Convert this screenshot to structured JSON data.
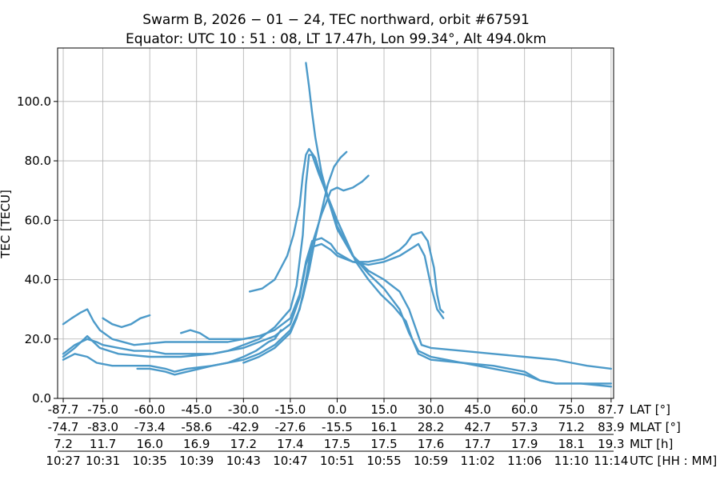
{
  "chart_data": {
    "type": "scatter",
    "title_line1": "Swarm B,  2026 − 01 − 24,  TEC northward,  orbit #67591",
    "title_line2": "Equator:  UTC 10 : 51 : 08,  LT 17.47h,  Lon 99.34°,  Alt 494.0km",
    "ylabel": "TEC [TECU]",
    "ylim": [
      0,
      118
    ],
    "xlim": [
      -89.5,
      88.5
    ],
    "y_ticks": [
      0,
      20,
      40,
      60,
      80,
      100
    ],
    "y_tick_labels": [
      "0.0",
      "20.0",
      "40.0",
      "60.0",
      "80.0",
      "100.0"
    ],
    "x_ticks": [
      -87.7,
      -75.0,
      -60.0,
      -45.0,
      -30.0,
      -15.0,
      0.0,
      15.0,
      30.0,
      45.0,
      60.0,
      75.0,
      87.7
    ],
    "grid": true,
    "color": "#4c9ac9",
    "axis_rows": [
      {
        "label": "LAT [°]",
        "values": [
          "-87.7",
          "-75.0",
          "-60.0",
          "-45.0",
          "-30.0",
          "-15.0",
          "0.0",
          "15.0",
          "30.0",
          "45.0",
          "60.0",
          "75.0",
          "87.7"
        ]
      },
      {
        "label": "MLAT [°]",
        "values": [
          "-74.7",
          "-83.0",
          "-73.4",
          "-58.6",
          "-42.9",
          "-27.6",
          "-15.5",
          "16.1",
          "28.2",
          "42.7",
          "57.3",
          "71.2",
          "83.9"
        ]
      },
      {
        "label": "MLT [h]",
        "values": [
          "7.2",
          "11.7",
          "16.0",
          "16.9",
          "17.2",
          "17.4",
          "17.5",
          "17.5",
          "17.6",
          "17.7",
          "17.9",
          "18.1",
          "19.3"
        ]
      },
      {
        "label": "UTC [HH : MM]",
        "values": [
          "10:27",
          "10:31",
          "10:35",
          "10:39",
          "10:43",
          "10:47",
          "10:51",
          "10:55",
          "10:59",
          "11:02",
          "11:06",
          "11:10",
          "11:14"
        ]
      }
    ],
    "series": [
      {
        "name": "arc-1",
        "points": [
          [
            -87.7,
            14
          ],
          [
            -84,
            17
          ],
          [
            -80,
            21
          ],
          [
            -76,
            17
          ],
          [
            -70,
            15
          ],
          [
            -60,
            14
          ],
          [
            -50,
            14
          ],
          [
            -40,
            15
          ],
          [
            -30,
            17
          ],
          [
            -20,
            21
          ],
          [
            -15,
            25
          ],
          [
            -12,
            34
          ],
          [
            -10,
            45
          ],
          [
            -8,
            51
          ],
          [
            -5,
            52
          ],
          [
            -2,
            50
          ],
          [
            0,
            48
          ],
          [
            5,
            46
          ],
          [
            10,
            46
          ],
          [
            15,
            47
          ],
          [
            20,
            50
          ],
          [
            22,
            52
          ],
          [
            24,
            55
          ],
          [
            27,
            56
          ],
          [
            29,
            53
          ],
          [
            31,
            44
          ],
          [
            32,
            35
          ],
          [
            33,
            30
          ],
          [
            34,
            29
          ]
        ]
      },
      {
        "name": "arc-2",
        "points": [
          [
            -87.7,
            25
          ],
          [
            -85,
            27
          ],
          [
            -82,
            29
          ],
          [
            -80,
            30
          ],
          [
            -78,
            26
          ],
          [
            -76,
            23
          ],
          [
            -72,
            20
          ],
          [
            -65,
            18
          ],
          [
            -55,
            19
          ],
          [
            -45,
            19
          ],
          [
            -35,
            19
          ],
          [
            -30,
            20
          ],
          [
            -25,
            21
          ],
          [
            -20,
            23
          ],
          [
            -15,
            27
          ],
          [
            -12,
            35
          ],
          [
            -10,
            46
          ],
          [
            -8,
            53
          ],
          [
            -5,
            54
          ],
          [
            -2,
            52
          ],
          [
            0,
            49
          ],
          [
            5,
            46
          ],
          [
            10,
            45
          ],
          [
            15,
            46
          ],
          [
            20,
            48
          ],
          [
            23,
            50
          ],
          [
            26,
            52
          ],
          [
            28,
            48
          ],
          [
            30,
            38
          ],
          [
            32,
            30
          ],
          [
            34,
            27
          ]
        ]
      },
      {
        "name": "arc-3",
        "points": [
          [
            -87.7,
            13
          ],
          [
            -84,
            15
          ],
          [
            -80,
            14
          ],
          [
            -77,
            12
          ],
          [
            -72,
            11
          ],
          [
            -65,
            11
          ],
          [
            -60,
            11
          ],
          [
            -55,
            10
          ],
          [
            -52,
            9
          ],
          [
            -48,
            10
          ],
          [
            -40,
            11
          ],
          [
            -30,
            13
          ],
          [
            -25,
            15
          ],
          [
            -20,
            18
          ],
          [
            -15,
            23
          ],
          [
            -12,
            30
          ],
          [
            -10,
            40
          ],
          [
            -9,
            46
          ],
          [
            -8,
            52
          ],
          [
            -5,
            62
          ],
          [
            -2,
            70
          ],
          [
            0,
            71
          ],
          [
            2,
            70
          ],
          [
            5,
            71
          ],
          [
            8,
            73
          ],
          [
            10,
            75
          ]
        ]
      },
      {
        "name": "arc-4",
        "points": [
          [
            -87.7,
            15
          ],
          [
            -84,
            18
          ],
          [
            -80,
            20
          ],
          [
            -77,
            19
          ],
          [
            -75,
            18
          ],
          [
            -70,
            17
          ],
          [
            -65,
            16
          ],
          [
            -60,
            16
          ],
          [
            -55,
            15
          ],
          [
            -50,
            15
          ],
          [
            -40,
            15
          ],
          [
            -35,
            16
          ],
          [
            -30,
            18
          ],
          [
            -25,
            20
          ],
          [
            -20,
            24
          ],
          [
            -15,
            30
          ],
          [
            -13,
            38
          ],
          [
            -11,
            55
          ],
          [
            -10,
            72
          ],
          [
            -9,
            82
          ],
          [
            -8,
            82
          ],
          [
            -6,
            76
          ],
          [
            -3,
            68
          ],
          [
            0,
            60
          ],
          [
            3,
            53
          ],
          [
            6,
            46
          ],
          [
            10,
            40
          ],
          [
            14,
            35
          ],
          [
            18,
            31
          ],
          [
            22,
            26
          ],
          [
            24,
            20
          ],
          [
            26,
            15
          ],
          [
            30,
            13
          ],
          [
            40,
            12
          ],
          [
            50,
            11
          ],
          [
            60,
            9
          ],
          [
            65,
            6
          ],
          [
            70,
            5
          ],
          [
            75,
            5
          ],
          [
            80,
            5
          ],
          [
            85,
            5
          ],
          [
            87.7,
            5
          ]
        ]
      },
      {
        "name": "arc-5",
        "points": [
          [
            -30,
            12
          ],
          [
            -25,
            14
          ],
          [
            -20,
            17
          ],
          [
            -15,
            22
          ],
          [
            -13,
            27
          ],
          [
            -11,
            34
          ],
          [
            -9,
            43
          ],
          [
            -7,
            54
          ],
          [
            -5,
            63
          ],
          [
            -3,
            72
          ],
          [
            -1,
            78
          ],
          [
            1,
            81
          ],
          [
            3,
            83
          ]
        ]
      },
      {
        "name": "arc-6",
        "points": [
          [
            -64,
            10
          ],
          [
            -60,
            10
          ],
          [
            -55,
            9
          ],
          [
            -52,
            8
          ],
          [
            -48,
            9
          ],
          [
            -44,
            10
          ],
          [
            -40,
            11
          ],
          [
            -35,
            12
          ],
          [
            -30,
            14
          ],
          [
            -26,
            16
          ],
          [
            -22,
            19
          ],
          [
            -20,
            20
          ],
          [
            -18,
            23
          ]
        ]
      },
      {
        "name": "arc-7",
        "points": [
          [
            -50,
            22
          ],
          [
            -47,
            23
          ],
          [
            -44,
            22
          ],
          [
            -41,
            20
          ],
          [
            -35,
            20
          ],
          [
            -30,
            20
          ],
          [
            -25,
            21
          ]
        ]
      },
      {
        "name": "arc-8",
        "points": [
          [
            -75,
            27
          ],
          [
            -72,
            25
          ],
          [
            -69,
            24
          ],
          [
            -66,
            25
          ],
          [
            -63,
            27
          ],
          [
            -60,
            28
          ]
        ]
      },
      {
        "name": "arc-9",
        "points": [
          [
            -28,
            36
          ],
          [
            -24,
            37
          ],
          [
            -20,
            40
          ],
          [
            -18,
            44
          ],
          [
            -16,
            48
          ],
          [
            -14,
            55
          ],
          [
            -12,
            65
          ],
          [
            -11,
            75
          ],
          [
            -10,
            82
          ],
          [
            -9,
            84
          ],
          [
            -7,
            81
          ],
          [
            -5,
            74
          ],
          [
            -2,
            64
          ],
          [
            0,
            57
          ],
          [
            5,
            48
          ],
          [
            10,
            42
          ],
          [
            15,
            37
          ],
          [
            20,
            30
          ],
          [
            23,
            22
          ],
          [
            26,
            16
          ],
          [
            30,
            14
          ],
          [
            35,
            13
          ],
          [
            40,
            12
          ],
          [
            50,
            10
          ],
          [
            60,
            8
          ],
          [
            65,
            6
          ],
          [
            70,
            5
          ],
          [
            78,
            5
          ],
          [
            87.7,
            4
          ]
        ]
      },
      {
        "name": "arc-10",
        "points": [
          [
            -10,
            113
          ],
          [
            -9,
            105
          ],
          [
            -8,
            96
          ],
          [
            -7,
            88
          ],
          [
            -6,
            82
          ],
          [
            -5,
            76
          ],
          [
            -3,
            68
          ],
          [
            0,
            58
          ],
          [
            5,
            48
          ],
          [
            10,
            43
          ],
          [
            15,
            40
          ],
          [
            20,
            36
          ],
          [
            23,
            30
          ],
          [
            25,
            24
          ],
          [
            27,
            18
          ],
          [
            30,
            17
          ],
          [
            40,
            16
          ],
          [
            50,
            15
          ],
          [
            60,
            14
          ],
          [
            70,
            13
          ],
          [
            75,
            12
          ],
          [
            80,
            11
          ],
          [
            87.7,
            10
          ]
        ]
      }
    ]
  }
}
